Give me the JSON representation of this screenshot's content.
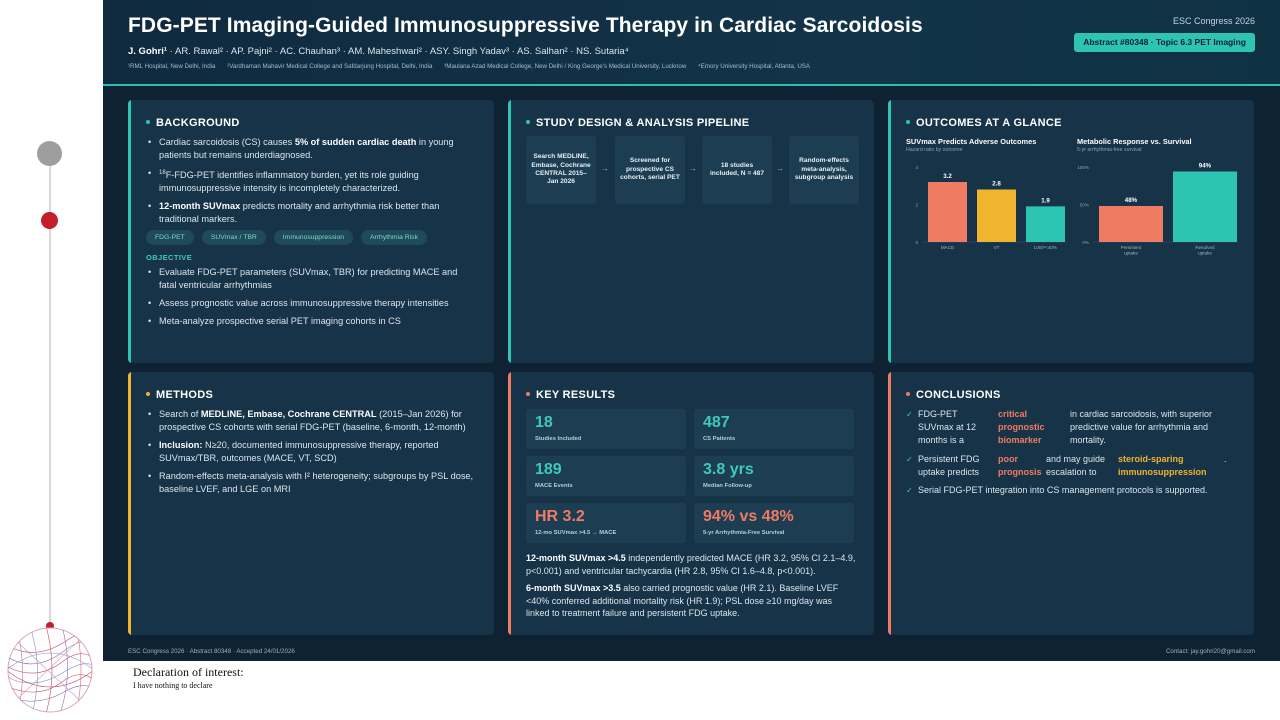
{
  "header": {
    "title": "FDG-PET Imaging-Guided Immunosuppressive Therapy in Cardiac Sarcoidosis",
    "authors_lead": "J. Gohri¹",
    "authors_rest": " · AR. Rawal² · AP. Pajni² · AC. Chauhan³ · AM. Maheshwari² · ASY. Singh Yadav³ · AS. Salhan² · NS. Sutaria⁴",
    "affiliations": [
      "¹RML Hospital, New Delhi, India",
      "²Vardhaman Mahavir Medical College and Safdarjung Hospital, Delhi, India",
      "³Maulana Azad Medical College, New Delhi / King George's Medical University, Lucknow",
      "⁴Emory University Hospital, Atlanta, USA"
    ],
    "congress": "ESC Congress 2026",
    "abstract_badge": "Abstract #80348 · Topic 6.3 PET Imaging"
  },
  "background": {
    "title": "BACKGROUND",
    "b1_pre": "Cardiac sarcoidosis (CS) causes ",
    "b1_bold": "5% of sudden cardiac death",
    "b1_post": " in young patients but remains underdiagnosed.",
    "b2_sup": "18",
    "b2_text": "F-FDG-PET identifies inflammatory burden, yet its role guiding immunosuppressive intensity is incompletely characterized.",
    "b3_bold": "12-month SUVmax",
    "b3_post": " predicts mortality and arrhythmia risk better than traditional markers.",
    "tags": [
      "FDG-PET",
      "SUVmax / TBR",
      "Immunosuppression",
      "Arrhythmia Risk"
    ],
    "objective_label": "OBJECTIVE",
    "objectives": [
      "Evaluate FDG-PET parameters (SUVmax, TBR) for predicting MACE and fatal ventricular arrhythmias",
      "Assess prognostic value across immunosuppressive therapy intensities",
      "Meta-analyze prospective serial PET imaging cohorts in CS"
    ]
  },
  "pipeline": {
    "title": "STUDY DESIGN & ANALYSIS PIPELINE",
    "steps": [
      "Search MEDLINE, Embase, Cochrane CENTRAL 2015–Jan 2026",
      "Screened for prospective CS cohorts, serial PET",
      "18 studies included, N = 487",
      "Random-effects meta-analysis, subgroup analysis"
    ],
    "arrow": "→"
  },
  "outcomes": {
    "title": "OUTCOMES AT A GLANCE"
  },
  "chart_data": [
    {
      "type": "bar",
      "title": "SUVmax Predicts Adverse Outcomes",
      "subtitle": "Hazard ratio by outcome",
      "categories": [
        "MACE",
        "VT",
        "LVEF<40%"
      ],
      "values": [
        3.2,
        2.8,
        1.9
      ],
      "value_labels": [
        "3.2",
        "2.8",
        "1.9"
      ],
      "yticks": [
        "0",
        "2",
        "4"
      ],
      "ylim": [
        0,
        4
      ],
      "colors": [
        "#f07b63",
        "#f1b42f",
        "#2ec4b3"
      ]
    },
    {
      "type": "bar",
      "title": "Metabolic Response vs. Survival",
      "subtitle": "5-yr arrhythmia-free survival",
      "categories": [
        "Persistent uptake",
        "Resolved uptake"
      ],
      "values": [
        48,
        94
      ],
      "value_labels": [
        "48%",
        "94%"
      ],
      "yticks": [
        "0%",
        "50%",
        "100%"
      ],
      "ylim": [
        0,
        100
      ],
      "colors": [
        "#f07b63",
        "#2ec4b3"
      ]
    }
  ],
  "methods": {
    "title": "METHODS",
    "m1_pre": "Search of ",
    "m1_bold": "MEDLINE, Embase, Cochrane CENTRAL",
    "m1_post": " (2015–Jan 2026) for prospective CS cohorts with serial FDG-PET (baseline, 6-month, 12-month)",
    "m2_bold": "Inclusion:",
    "m2_post": " N≥20, documented immunosuppressive therapy, reported SUVmax/TBR, outcomes (MACE, VT, SCD)",
    "m3": "Random-effects meta-analysis with I² heterogeneity; subgroups by PSL dose, baseline LVEF, and LGE on MRI"
  },
  "results": {
    "title": "KEY RESULTS",
    "cards": [
      {
        "value": "18",
        "label": "Studies Included",
        "color": "#3fc9b9"
      },
      {
        "value": "487",
        "label": "CS Patients",
        "color": "#3fc9b9"
      },
      {
        "value": "189",
        "label": "MACE Events",
        "color": "#3fc9b9"
      },
      {
        "value": "3.8 yrs",
        "label": "Median Follow-up",
        "color": "#3fc9b9"
      },
      {
        "value": "HR 3.2",
        "label": "12-mo SUVmax >4.5 → MACE",
        "color": "#f07b63"
      },
      {
        "value": "94% vs 48%",
        "label": "5-yr Arrhythmia-Free Survival",
        "color": "#f07b63"
      }
    ],
    "p1_bold": "12-month SUVmax >4.5",
    "p1_post": " independently predicted MACE (HR 3.2, 95% CI 2.1–4.9, p<0.001) and ventricular tachycardia (HR 2.8, 95% CI 1.6–4.8, p<0.001).",
    "p2_bold": "6-month SUVmax >3.5",
    "p2_post": " also carried prognostic value (HR 2.1). Baseline LVEF <40% conferred additional mortality risk (HR 1.9); PSL dose ≥10 mg/day was linked to treatment failure and persistent FDG uptake."
  },
  "conclusions": {
    "title": "CONCLUSIONS",
    "check": "✓",
    "c1_a": "FDG-PET SUVmax at 12 months is a",
    "c1_hl": "critical prognostic biomarker",
    "c1_b": "in cardiac sarcoidosis, with superior predictive value for arrhythmia and mortality.",
    "c2_a": "Persistent FDG uptake predicts",
    "c2_hl": "poor prognosis",
    "c2_b": "and may guide escalation to",
    "c2_hl2": "steroid-sparing immunosuppression",
    "c2_end": ".",
    "c3": "Serial FDG-PET integration into CS management protocols is supported."
  },
  "footer": {
    "left": "ESC Congress 2026 · Abstract 80348 · Accepted 24/01/2026",
    "right": "Contact: jay.gohri20@gmail.com"
  },
  "declaration": {
    "title": "Declaration of interest:",
    "text": "I have nothing to declare"
  }
}
